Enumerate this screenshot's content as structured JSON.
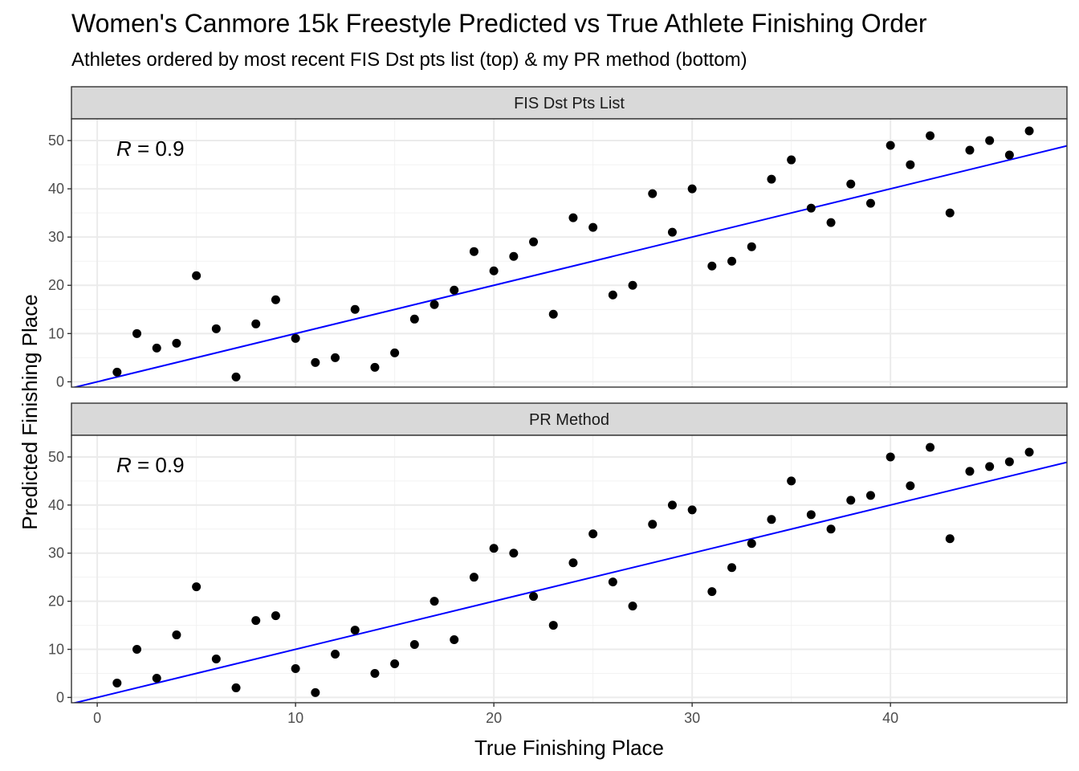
{
  "title": "Women's Canmore 15k Freestyle Predicted vs True Athlete Finishing Order",
  "subtitle": "Athletes ordered by most recent FIS Dst pts list (top) & my PR method (bottom)",
  "chart_data": {
    "type": "scatter",
    "xlabel": "True Finishing Place",
    "ylabel": "Predicted Finishing Place",
    "xlim": [
      -1.3,
      48.9
    ],
    "ylim": [
      -1.1,
      54.5
    ],
    "x_ticks": [
      0,
      10,
      20,
      30,
      40
    ],
    "y_ticks": [
      0,
      10,
      20,
      30,
      40,
      50
    ],
    "grid": true,
    "reference_line": {
      "slope": 1,
      "intercept": 0,
      "color": "#0000ff"
    },
    "panels": [
      {
        "name": "FIS Dst Pts List",
        "annotation_symbol": "R",
        "annotation_value": " = 0.9",
        "x": [
          1,
          2,
          3,
          4,
          5,
          6,
          7,
          8,
          9,
          10,
          11,
          12,
          13,
          14,
          15,
          16,
          17,
          18,
          19,
          20,
          21,
          22,
          23,
          24,
          25,
          26,
          27,
          28,
          29,
          30,
          31,
          32,
          33,
          34,
          35,
          36,
          37,
          38,
          39,
          40,
          41,
          42,
          43,
          44,
          45,
          46,
          47
        ],
        "y": [
          2,
          10,
          7,
          8,
          22,
          11,
          1,
          12,
          17,
          9,
          4,
          5,
          15,
          3,
          6,
          13,
          16,
          19,
          27,
          23,
          26,
          29,
          14,
          34,
          32,
          18,
          20,
          39,
          31,
          40,
          24,
          25,
          28,
          42,
          46,
          36,
          33,
          41,
          37,
          49,
          45,
          51,
          35,
          48,
          50,
          47,
          52
        ]
      },
      {
        "name": "PR Method",
        "annotation_symbol": "R",
        "annotation_value": " = 0.9",
        "x": [
          1,
          2,
          3,
          4,
          5,
          6,
          7,
          8,
          9,
          10,
          11,
          12,
          13,
          14,
          15,
          16,
          17,
          18,
          19,
          20,
          21,
          22,
          23,
          24,
          25,
          26,
          27,
          28,
          29,
          30,
          31,
          32,
          33,
          34,
          35,
          36,
          37,
          38,
          39,
          40,
          41,
          42,
          43,
          44,
          45,
          46,
          47
        ],
        "y": [
          3,
          10,
          4,
          13,
          23,
          8,
          2,
          16,
          17,
          6,
          1,
          9,
          14,
          5,
          7,
          11,
          20,
          12,
          25,
          31,
          30,
          21,
          15,
          28,
          34,
          24,
          19,
          36,
          40,
          39,
          22,
          27,
          32,
          37,
          45,
          38,
          35,
          41,
          42,
          50,
          44,
          52,
          33,
          47,
          48,
          49,
          51
        ]
      }
    ]
  },
  "colors": {
    "point": "#000000",
    "line": "#0000ff",
    "strip_fill": "#d9d9d9",
    "grid_major": "#ebebeb",
    "grid_minor": "#f2f2f2",
    "border": "#333333"
  }
}
